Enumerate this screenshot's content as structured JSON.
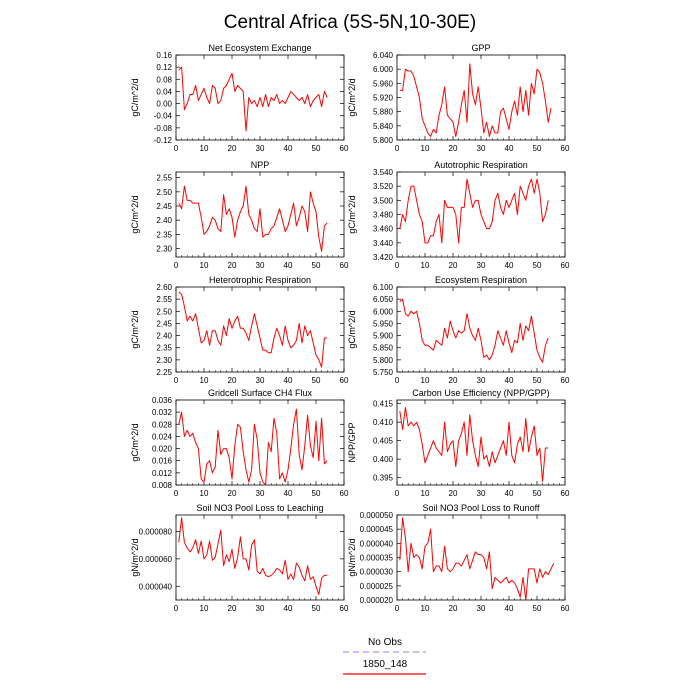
{
  "title": "Central Africa (5S-5N,10-30E)",
  "legend": [
    {
      "label": "No Obs",
      "color": "#9c9cff",
      "style": "dashed"
    },
    {
      "label": "1850_148",
      "color": "#ff0000",
      "style": "solid"
    }
  ],
  "chart_data": [
    {
      "type": "line",
      "title": "Net Ecosystem Exchange",
      "ylabel": "gC/m^2/d",
      "xlim": [
        0,
        60
      ],
      "xticks": [
        0,
        10,
        20,
        30,
        40,
        50,
        60
      ],
      "ylim": [
        -0.12,
        0.16
      ],
      "yticks": [
        "-0.12",
        "-0.08",
        "-0.04",
        "0.00",
        "0.04",
        "0.08",
        "0.12",
        "0.16"
      ],
      "series": [
        {
          "color": "#ff0000",
          "x_start": 1,
          "values": [
            0.11,
            0.12,
            -0.02,
            0.0,
            0.03,
            0.03,
            0.06,
            0.01,
            0.03,
            0.05,
            0.02,
            0.0,
            0.06,
            0.05,
            0.0,
            0.01,
            0.05,
            0.06,
            0.08,
            0.1,
            0.04,
            0.06,
            0.05,
            0.04,
            -0.09,
            0.02,
            0.0,
            0.01,
            -0.01,
            0.02,
            -0.01,
            0.03,
            -0.01,
            0.02,
            0.01,
            0.03,
            0.0,
            0.01,
            0.0,
            0.02,
            0.04,
            0.03,
            0.02,
            0.01,
            0.02,
            0.0,
            0.03,
            -0.01,
            0.01,
            0.02,
            0.03,
            -0.01,
            0.04,
            0.02
          ]
        }
      ]
    },
    {
      "type": "line",
      "title": "GPP",
      "ylabel": "gC/m^2/d",
      "xlim": [
        0,
        60
      ],
      "xticks": [
        0,
        10,
        20,
        30,
        40,
        50,
        60
      ],
      "ylim": [
        5.8,
        6.04
      ],
      "yticks": [
        "5.800",
        "5.840",
        "5.880",
        "5.920",
        "5.960",
        "6.000",
        "6.040"
      ],
      "series": [
        {
          "color": "#ff0000",
          "x_start": 1,
          "values": [
            5.94,
            5.94,
            6.0,
            5.995,
            5.995,
            5.98,
            5.95,
            5.92,
            5.86,
            5.84,
            5.82,
            5.81,
            5.83,
            5.82,
            5.87,
            5.9,
            5.95,
            5.87,
            5.86,
            5.85,
            5.81,
            5.85,
            5.9,
            5.94,
            5.85,
            6.015,
            5.93,
            5.9,
            5.95,
            5.89,
            5.82,
            5.85,
            5.81,
            5.84,
            5.82,
            5.82,
            5.88,
            5.89,
            5.86,
            5.83,
            5.88,
            5.91,
            5.87,
            5.95,
            5.88,
            5.94,
            5.87,
            5.96,
            5.93,
            6.0,
            5.99,
            5.96,
            5.91,
            5.85,
            5.89
          ]
        }
      ]
    },
    {
      "type": "line",
      "title": "NPP",
      "ylabel": "gC/m^2/d",
      "xlim": [
        0,
        60
      ],
      "xticks": [
        0,
        10,
        20,
        30,
        40,
        50,
        60
      ],
      "ylim": [
        2.27,
        2.57
      ],
      "yticks": [
        "2.30",
        "2.35",
        "2.40",
        "2.45",
        "2.50",
        "2.55"
      ],
      "series": [
        {
          "color": "#ff0000",
          "x_start": 1,
          "values": [
            2.46,
            2.44,
            2.52,
            2.47,
            2.47,
            2.46,
            2.46,
            2.46,
            2.41,
            2.35,
            2.36,
            2.38,
            2.41,
            2.4,
            2.37,
            2.36,
            2.49,
            2.42,
            2.44,
            2.41,
            2.34,
            2.4,
            2.43,
            2.45,
            2.52,
            2.42,
            2.4,
            2.37,
            2.36,
            2.44,
            2.34,
            2.35,
            2.35,
            2.37,
            2.38,
            2.41,
            2.44,
            2.4,
            2.36,
            2.38,
            2.42,
            2.46,
            2.38,
            2.41,
            2.45,
            2.43,
            2.36,
            2.5,
            2.46,
            2.43,
            2.34,
            2.29,
            2.38,
            2.39
          ]
        }
      ]
    },
    {
      "type": "line",
      "title": "Autotrophic Respiration",
      "ylabel": "gC/m^2/d",
      "xlim": [
        0,
        60
      ],
      "xticks": [
        0,
        10,
        20,
        30,
        40,
        50,
        60
      ],
      "ylim": [
        3.42,
        3.54
      ],
      "yticks": [
        "3.420",
        "3.440",
        "3.460",
        "3.480",
        "3.500",
        "3.520",
        "3.540"
      ],
      "series": [
        {
          "color": "#ff0000",
          "x_start": 1,
          "values": [
            3.46,
            3.48,
            3.47,
            3.5,
            3.52,
            3.52,
            3.5,
            3.48,
            3.47,
            3.44,
            3.44,
            3.45,
            3.45,
            3.47,
            3.48,
            3.44,
            3.5,
            3.49,
            3.49,
            3.49,
            3.48,
            3.44,
            3.49,
            3.49,
            3.53,
            3.51,
            3.49,
            3.5,
            3.5,
            3.48,
            3.47,
            3.46,
            3.46,
            3.47,
            3.5,
            3.51,
            3.49,
            3.48,
            3.5,
            3.49,
            3.5,
            3.51,
            3.48,
            3.52,
            3.51,
            3.5,
            3.52,
            3.53,
            3.51,
            3.53,
            3.51,
            3.47,
            3.48,
            3.5
          ]
        }
      ]
    },
    {
      "type": "line",
      "title": "Heterotrophic Respiration",
      "ylabel": "gC/m^2/d",
      "xlim": [
        0,
        60
      ],
      "xticks": [
        0,
        10,
        20,
        30,
        40,
        50,
        60
      ],
      "ylim": [
        2.25,
        2.6
      ],
      "yticks": [
        "2.25",
        "2.30",
        "2.35",
        "2.40",
        "2.45",
        "2.50",
        "2.55",
        "2.60"
      ],
      "series": [
        {
          "color": "#ff0000",
          "x_start": 1,
          "values": [
            2.58,
            2.57,
            2.52,
            2.46,
            2.48,
            2.46,
            2.49,
            2.43,
            2.37,
            2.38,
            2.42,
            2.36,
            2.42,
            2.42,
            2.38,
            2.36,
            2.44,
            2.4,
            2.47,
            2.43,
            2.46,
            2.48,
            2.43,
            2.43,
            2.41,
            2.38,
            2.44,
            2.49,
            2.44,
            2.39,
            2.34,
            2.34,
            2.33,
            2.33,
            2.39,
            2.43,
            2.4,
            2.36,
            2.44,
            2.38,
            2.35,
            2.36,
            2.38,
            2.45,
            2.37,
            2.44,
            2.4,
            2.42,
            2.37,
            2.32,
            2.3,
            2.27,
            2.39,
            2.39
          ]
        }
      ]
    },
    {
      "type": "line",
      "title": "Ecosystem Respiration",
      "ylabel": "gC/m^2/d",
      "xlim": [
        0,
        60
      ],
      "xticks": [
        0,
        10,
        20,
        30,
        40,
        50,
        60
      ],
      "ylim": [
        5.75,
        6.1
      ],
      "yticks": [
        "5.750",
        "5.800",
        "5.850",
        "5.900",
        "5.950",
        "6.000",
        "6.050",
        "6.100"
      ],
      "series": [
        {
          "color": "#ff0000",
          "x_start": 1,
          "values": [
            6.04,
            6.05,
            5.99,
            5.98,
            6.0,
            5.99,
            6.0,
            5.95,
            5.88,
            5.86,
            5.86,
            5.85,
            5.84,
            5.88,
            5.87,
            5.86,
            5.93,
            5.89,
            5.96,
            5.92,
            5.89,
            5.92,
            5.91,
            5.92,
            5.99,
            5.93,
            5.9,
            5.88,
            5.93,
            5.88,
            5.81,
            5.82,
            5.8,
            5.82,
            5.86,
            5.92,
            5.89,
            5.86,
            5.92,
            5.87,
            5.83,
            5.88,
            5.87,
            5.95,
            5.88,
            5.94,
            5.92,
            5.98,
            5.91,
            5.84,
            5.81,
            5.79,
            5.86,
            5.89
          ]
        }
      ]
    },
    {
      "type": "line",
      "title": "Gridcell Surface CH4 Flux",
      "ylabel": "gC/m^2/d",
      "xlim": [
        0,
        60
      ],
      "xticks": [
        0,
        10,
        20,
        30,
        40,
        50,
        60
      ],
      "ylim": [
        0.008,
        0.036
      ],
      "yticks": [
        "0.008",
        "0.012",
        "0.016",
        "0.020",
        "0.024",
        "0.028",
        "0.032",
        "0.036"
      ],
      "series": [
        {
          "color": "#ff0000",
          "x_start": 1,
          "values": [
            0.028,
            0.032,
            0.024,
            0.026,
            0.024,
            0.025,
            0.022,
            0.02,
            0.01,
            0.009,
            0.015,
            0.016,
            0.012,
            0.014,
            0.026,
            0.018,
            0.02,
            0.02,
            0.017,
            0.01,
            0.021,
            0.028,
            0.027,
            0.019,
            0.013,
            0.009,
            0.013,
            0.028,
            0.023,
            0.012,
            0.009,
            0.008,
            0.022,
            0.019,
            0.03,
            0.025,
            0.01,
            0.012,
            0.009,
            0.013,
            0.02,
            0.028,
            0.033,
            0.018,
            0.013,
            0.021,
            0.031,
            0.021,
            0.017,
            0.029,
            0.016,
            0.03,
            0.015,
            0.016
          ]
        }
      ]
    },
    {
      "type": "line",
      "title": "Carbon Use Efficiency (NPP/GPP)",
      "ylabel": "NPP/GPP",
      "xlim": [
        0,
        60
      ],
      "xticks": [
        0,
        10,
        20,
        30,
        40,
        50,
        60
      ],
      "ylim": [
        0.393,
        0.416
      ],
      "yticks": [
        "0.395",
        "0.400",
        "0.405",
        "0.410",
        "0.415"
      ],
      "series": [
        {
          "color": "#ff0000",
          "x_start": 1,
          "values": [
            0.413,
            0.408,
            0.414,
            0.409,
            0.41,
            0.409,
            0.41,
            0.408,
            0.404,
            0.399,
            0.401,
            0.403,
            0.405,
            0.403,
            0.402,
            0.401,
            0.41,
            0.402,
            0.404,
            0.405,
            0.398,
            0.405,
            0.407,
            0.41,
            0.401,
            0.412,
            0.405,
            0.401,
            0.398,
            0.406,
            0.4,
            0.401,
            0.398,
            0.402,
            0.399,
            0.401,
            0.403,
            0.405,
            0.401,
            0.41,
            0.401,
            0.399,
            0.404,
            0.406,
            0.402,
            0.411,
            0.402,
            0.406,
            0.409,
            0.401,
            0.403,
            0.394,
            0.403,
            0.403
          ]
        }
      ]
    },
    {
      "type": "line",
      "title": "Soil NO3 Pool Loss to Leaching",
      "ylabel": "gN/m^2/d",
      "xlim": [
        0,
        60
      ],
      "xticks": [
        0,
        10,
        20,
        30,
        40,
        50,
        60
      ],
      "ylim": [
        3e-05,
        9.2e-05
      ],
      "yticks": [
        "0.000040",
        "0.000060",
        "0.000080"
      ],
      "series": [
        {
          "color": "#ff0000",
          "x_start": 1,
          "values": [
            7.2e-05,
            9e-05,
            7.2e-05,
            6.8e-05,
            6.5e-05,
            6.8e-05,
            7.4e-05,
            6.4e-05,
            7.3e-05,
            6e-05,
            6.3e-05,
            7.3e-05,
            5.9e-05,
            6.1e-05,
            7.1e-05,
            8.1e-05,
            5.5e-05,
            6.3e-05,
            5.8e-05,
            6.7e-05,
            5.3e-05,
            6.1e-05,
            7.6e-05,
            6e-05,
            6e-05,
            5.2e-05,
            7e-05,
            7.4e-05,
            5.1e-05,
            4.9e-05,
            5.3e-05,
            4.8e-05,
            4.7e-05,
            4.8e-05,
            5e-05,
            5.3e-05,
            5.2e-05,
            4.9e-05,
            5.9e-05,
            4.5e-05,
            4.9e-05,
            4.5e-05,
            5.7e-05,
            5.4e-05,
            4.8e-05,
            4.4e-05,
            5.5e-05,
            4.5e-05,
            4.7e-05,
            4e-05,
            3.4e-05,
            4.6e-05,
            4.8e-05,
            4.8e-05
          ]
        }
      ]
    },
    {
      "type": "line",
      "title": "Soil NO3 Pool Loss to Runoff",
      "ylabel": "gN/m^2/d",
      "xlim": [
        0,
        60
      ],
      "xticks": [
        0,
        10,
        20,
        30,
        40,
        50,
        60
      ],
      "ylim": [
        2e-05,
        5e-05
      ],
      "yticks": [
        "0.000020",
        "0.000025",
        "0.000030",
        "0.000035",
        "0.000040",
        "0.000045",
        "0.000050"
      ],
      "series": [
        {
          "color": "#ff0000",
          "x_start": 1,
          "values": [
            3.4e-05,
            4.9e-05,
            4.2e-05,
            3e-05,
            4e-05,
            3.5e-05,
            3.6e-05,
            3.5e-05,
            3.1e-05,
            3.9e-05,
            4e-05,
            4.5e-05,
            3e-05,
            3.2e-05,
            3.2e-05,
            3e-05,
            3.9e-05,
            3.1e-05,
            3e-05,
            3.1e-05,
            3.3e-05,
            3.3e-05,
            3.2e-05,
            3.4e-05,
            3.6e-05,
            3.1e-05,
            3.4e-05,
            3.7e-05,
            3.6e-05,
            3.6e-05,
            3.5e-05,
            3.1e-05,
            3.7e-05,
            2.4e-05,
            2.8e-05,
            2.7e-05,
            2.6e-05,
            2.7e-05,
            2.8e-05,
            2.6e-05,
            2.7e-05,
            2.6e-05,
            2.4e-05,
            2.1e-05,
            2.8e-05,
            2e-05,
            3.1e-05,
            3.1e-05,
            3.1e-05,
            2.6e-05,
            3.1e-05,
            2.8e-05,
            3e-05,
            2.9e-05,
            3.1e-05,
            3.3e-05
          ]
        }
      ]
    }
  ]
}
